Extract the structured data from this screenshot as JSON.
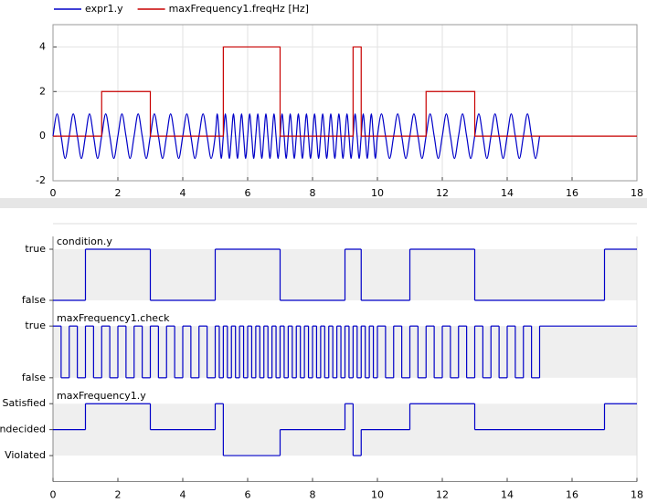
{
  "chart_data": [
    {
      "type": "line",
      "xlim": [
        0,
        18
      ],
      "xticks": [
        0,
        2,
        4,
        6,
        8,
        10,
        12,
        14,
        16,
        18
      ],
      "ylim": [
        -2,
        5
      ],
      "yticks": [
        -2,
        0,
        2,
        4
      ],
      "grid": true,
      "legend": "top",
      "series": [
        {
          "name": "expr1.y",
          "color": "#0000c8",
          "smooth": true,
          "x": [
            0,
            0.125,
            0.25,
            0.375,
            0.5,
            0.625,
            0.75,
            0.875,
            1,
            1.125,
            1.25,
            1.375,
            1.5,
            1.625,
            1.75,
            1.875,
            2,
            2.125,
            2.25,
            2.375,
            2.5,
            2.625,
            2.75,
            2.875,
            3,
            3.125,
            3.25,
            3.375,
            3.5,
            3.625,
            3.75,
            3.875,
            4,
            4.125,
            4.25,
            4.375,
            4.5,
            4.625,
            4.75,
            4.875,
            5,
            5.0625,
            5.125,
            5.1875,
            5.25,
            5.3125,
            5.375,
            5.4375,
            5.5,
            5.5625,
            5.625,
            5.6875,
            5.75,
            5.8125,
            5.875,
            5.9375,
            6,
            6.0625,
            6.125,
            6.1875,
            6.25,
            6.3125,
            6.375,
            6.4375,
            6.5,
            6.5625,
            6.625,
            6.6875,
            6.75,
            6.8125,
            6.875,
            6.9375,
            7,
            7.0625,
            7.125,
            7.1875,
            7.25,
            7.3125,
            7.375,
            7.4375,
            7.5,
            7.5625,
            7.625,
            7.6875,
            7.75,
            7.8125,
            7.875,
            7.9375,
            8,
            8.0625,
            8.125,
            8.1875,
            8.25,
            8.3125,
            8.375,
            8.4375,
            8.5,
            8.5625,
            8.625,
            8.6875,
            8.75,
            8.8125,
            8.875,
            8.9375,
            9,
            9.0625,
            9.125,
            9.1875,
            9.25,
            9.3125,
            9.375,
            9.4375,
            9.5,
            9.5625,
            9.625,
            9.6875,
            9.75,
            9.8125,
            9.875,
            9.9375,
            10,
            10.125,
            10.25,
            10.375,
            10.5,
            10.625,
            10.75,
            10.875,
            11,
            11.125,
            11.25,
            11.375,
            11.5,
            11.625,
            11.75,
            11.875,
            12,
            12.125,
            12.25,
            12.375,
            12.5,
            12.625,
            12.75,
            12.875,
            13,
            13.125,
            13.25,
            13.375,
            13.5,
            13.625,
            13.75,
            13.875,
            14,
            14.125,
            14.25,
            14.375,
            14.5,
            14.625,
            14.75,
            14.875,
            15
          ],
          "values": [
            0,
            1,
            0,
            -1,
            0,
            1,
            0,
            -1,
            0,
            1,
            0,
            -1,
            0,
            1,
            0,
            -1,
            0,
            1,
            0,
            -1,
            0,
            1,
            0,
            -1,
            0,
            1,
            0,
            -1,
            0,
            1,
            0,
            -1,
            0,
            1,
            0,
            -1,
            0,
            1,
            0,
            -1,
            0,
            1,
            0,
            -1,
            0,
            1,
            0,
            -1,
            0,
            1,
            0,
            -1,
            0,
            1,
            0,
            -1,
            0,
            1,
            0,
            -1,
            0,
            1,
            0,
            -1,
            0,
            1,
            0,
            -1,
            0,
            1,
            0,
            -1,
            0,
            1,
            0,
            -1,
            0,
            1,
            0,
            -1,
            0,
            1,
            0,
            -1,
            0,
            1,
            0,
            -1,
            0,
            1,
            0,
            -1,
            0,
            1,
            0,
            -1,
            0,
            1,
            0,
            -1,
            0,
            1,
            0,
            -1,
            0,
            1,
            0,
            -1,
            0,
            1,
            0,
            -1,
            0,
            1,
            0,
            -1,
            0,
            1,
            0,
            -1,
            0,
            1,
            0,
            -1,
            0,
            1,
            0,
            -1,
            0,
            1,
            0,
            -1,
            0,
            1,
            0,
            -1,
            0,
            1,
            0,
            -1,
            0,
            1,
            0,
            -1,
            0,
            1,
            0,
            -1,
            0,
            1,
            0,
            -1,
            0,
            1,
            0,
            -1,
            0,
            1,
            0,
            -1,
            0
          ]
        },
        {
          "name": "maxFrequency1.freqHz [Hz]",
          "color": "#c80000",
          "smooth": false,
          "x": [
            0,
            1.5,
            1.5,
            3,
            3,
            5.25,
            5.25,
            7,
            7,
            9.25,
            9.25,
            9.5,
            9.5,
            11.5,
            11.5,
            13,
            13,
            18
          ],
          "values": [
            0,
            0,
            2,
            2,
            0,
            0,
            4,
            4,
            0,
            0,
            4,
            4,
            0,
            0,
            2,
            2,
            0,
            0
          ]
        }
      ]
    },
    {
      "type": "step",
      "title": "condition.y",
      "color": "#0000c8",
      "xlim": [
        0,
        18
      ],
      "ylim": [
        -0.25,
        1.25
      ],
      "yticks": [
        {
          "value": 0,
          "label": "false"
        },
        {
          "value": 1,
          "label": "true"
        }
      ],
      "x": [
        0,
        1,
        3,
        5,
        7,
        9,
        9.5,
        11,
        13,
        17
      ],
      "values": [
        0,
        1,
        0,
        1,
        0,
        1,
        0,
        1,
        0,
        1
      ]
    },
    {
      "type": "step",
      "title": "maxFrequency1.check",
      "color": "#0000c8",
      "xlim": [
        0,
        18
      ],
      "ylim": [
        -0.25,
        1.25
      ],
      "yticks": [
        {
          "value": 0,
          "label": "false"
        },
        {
          "value": 1,
          "label": "true"
        }
      ],
      "x": [
        0,
        0.25,
        0.5,
        0.75,
        1,
        1.25,
        1.5,
        1.75,
        2,
        2.25,
        2.5,
        2.75,
        3,
        3.25,
        3.5,
        3.75,
        4,
        4.25,
        4.5,
        4.75,
        5,
        5.125,
        5.25,
        5.375,
        5.5,
        5.625,
        5.75,
        5.875,
        6,
        6.125,
        6.25,
        6.375,
        6.5,
        6.625,
        6.75,
        6.875,
        7,
        7.125,
        7.25,
        7.375,
        7.5,
        7.625,
        7.75,
        7.875,
        8,
        8.125,
        8.25,
        8.375,
        8.5,
        8.625,
        8.75,
        8.875,
        9,
        9.125,
        9.25,
        9.375,
        9.5,
        9.625,
        9.75,
        9.875,
        10,
        10.25,
        10.5,
        10.75,
        11,
        11.25,
        11.5,
        11.75,
        12,
        12.25,
        12.5,
        12.75,
        13,
        13.25,
        13.5,
        13.75,
        14,
        14.25,
        14.5,
        14.75,
        15
      ],
      "values": [
        1,
        0,
        1,
        0,
        1,
        0,
        1,
        0,
        1,
        0,
        1,
        0,
        1,
        0,
        1,
        0,
        1,
        0,
        1,
        0,
        1,
        0,
        1,
        0,
        1,
        0,
        1,
        0,
        1,
        0,
        1,
        0,
        1,
        0,
        1,
        0,
        1,
        0,
        1,
        0,
        1,
        0,
        1,
        0,
        1,
        0,
        1,
        0,
        1,
        0,
        1,
        0,
        1,
        0,
        1,
        0,
        1,
        0,
        1,
        0,
        1,
        0,
        1,
        0,
        1,
        0,
        1,
        0,
        1,
        0,
        1,
        0,
        1,
        0,
        1,
        0,
        1,
        0,
        1,
        0,
        1
      ]
    },
    {
      "type": "step",
      "title": "maxFrequency1.y",
      "color": "#0000c8",
      "xlim": [
        0,
        18
      ],
      "xticks": [
        0,
        2,
        4,
        6,
        8,
        10,
        12,
        14,
        16,
        18
      ],
      "ylim": [
        -2,
        1.5
      ],
      "yticks": [
        {
          "value": -1,
          "label": "Violated"
        },
        {
          "value": 0,
          "label": "Undecided"
        },
        {
          "value": 1,
          "label": "Satisfied"
        }
      ],
      "x": [
        0,
        1,
        3,
        5,
        5.25,
        7,
        9,
        9.25,
        9.5,
        11,
        13,
        17
      ],
      "values": [
        0,
        1,
        0,
        1,
        -1,
        0,
        1,
        -1,
        0,
        1,
        0,
        1
      ]
    }
  ]
}
